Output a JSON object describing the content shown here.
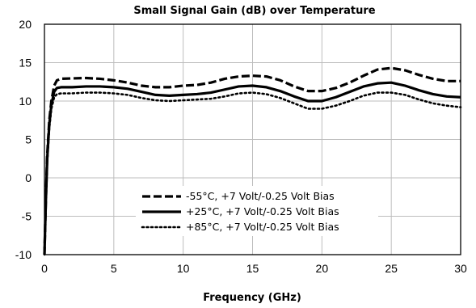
{
  "chart_data": {
    "type": "line",
    "title": "Small Signal Gain (dB) over Temperature",
    "xlabel": "Frequency (GHz)",
    "ylabel": "",
    "xlim": [
      0,
      30
    ],
    "ylim": [
      -10,
      20
    ],
    "xticks": [
      "0",
      "5",
      "10",
      "15",
      "20",
      "25",
      "30"
    ],
    "yticks": [
      "-10",
      "-5",
      "0",
      "5",
      "10",
      "15",
      "20"
    ],
    "grid": true,
    "legend_position": "bottom-center",
    "series": [
      {
        "name": "-55°C, +7 Volt/-0.25 Volt Bias",
        "style": "dashed",
        "color": "#000000",
        "points": [
          [
            0.0,
            -10
          ],
          [
            0.1,
            -3
          ],
          [
            0.2,
            3
          ],
          [
            0.35,
            7.5
          ],
          [
            0.5,
            10
          ],
          [
            0.7,
            12
          ],
          [
            0.9,
            12.7
          ],
          [
            1.2,
            12.9
          ],
          [
            2,
            12.95
          ],
          [
            3,
            13.0
          ],
          [
            4,
            12.9
          ],
          [
            5,
            12.7
          ],
          [
            6,
            12.4
          ],
          [
            7,
            12.0
          ],
          [
            8,
            11.8
          ],
          [
            9,
            11.8
          ],
          [
            10,
            12.0
          ],
          [
            11,
            12.1
          ],
          [
            12,
            12.4
          ],
          [
            13,
            12.9
          ],
          [
            14,
            13.2
          ],
          [
            15,
            13.3
          ],
          [
            16,
            13.2
          ],
          [
            17,
            12.7
          ],
          [
            18,
            11.9
          ],
          [
            19,
            11.3
          ],
          [
            20,
            11.3
          ],
          [
            21,
            11.7
          ],
          [
            22,
            12.4
          ],
          [
            23,
            13.3
          ],
          [
            24,
            14.1
          ],
          [
            25,
            14.3
          ],
          [
            26,
            14.0
          ],
          [
            27,
            13.4
          ],
          [
            28,
            12.9
          ],
          [
            29,
            12.6
          ],
          [
            30,
            12.6
          ]
        ]
      },
      {
        "name": "+25°C, +7 Volt/-0.25 Volt Bias",
        "style": "solid",
        "color": "#000000",
        "points": [
          [
            0.0,
            -10
          ],
          [
            0.1,
            -3
          ],
          [
            0.2,
            2.5
          ],
          [
            0.35,
            7
          ],
          [
            0.5,
            9.5
          ],
          [
            0.7,
            11.2
          ],
          [
            0.9,
            11.7
          ],
          [
            1.2,
            11.8
          ],
          [
            2,
            11.8
          ],
          [
            3,
            11.9
          ],
          [
            4,
            11.9
          ],
          [
            5,
            11.8
          ],
          [
            6,
            11.6
          ],
          [
            7,
            11.2
          ],
          [
            8,
            10.8
          ],
          [
            9,
            10.7
          ],
          [
            10,
            10.8
          ],
          [
            11,
            10.9
          ],
          [
            12,
            11.1
          ],
          [
            13,
            11.5
          ],
          [
            14,
            11.9
          ],
          [
            15,
            12.0
          ],
          [
            16,
            11.8
          ],
          [
            17,
            11.3
          ],
          [
            18,
            10.6
          ],
          [
            19,
            10.0
          ],
          [
            20,
            10.0
          ],
          [
            21,
            10.5
          ],
          [
            22,
            11.2
          ],
          [
            23,
            11.9
          ],
          [
            24,
            12.3
          ],
          [
            25,
            12.4
          ],
          [
            26,
            12.0
          ],
          [
            27,
            11.4
          ],
          [
            28,
            10.9
          ],
          [
            29,
            10.6
          ],
          [
            30,
            10.5
          ]
        ]
      },
      {
        "name": "+85°C, +7 Volt/-0.25 Volt Bias",
        "style": "dotted",
        "color": "#000000",
        "points": [
          [
            0.0,
            -10
          ],
          [
            0.1,
            -3
          ],
          [
            0.2,
            2
          ],
          [
            0.35,
            6.5
          ],
          [
            0.5,
            9
          ],
          [
            0.7,
            10.5
          ],
          [
            0.9,
            10.9
          ],
          [
            1.2,
            11.0
          ],
          [
            2,
            11.0
          ],
          [
            3,
            11.1
          ],
          [
            4,
            11.1
          ],
          [
            5,
            11.0
          ],
          [
            6,
            10.8
          ],
          [
            7,
            10.4
          ],
          [
            8,
            10.1
          ],
          [
            9,
            10.0
          ],
          [
            10,
            10.1
          ],
          [
            11,
            10.2
          ],
          [
            12,
            10.3
          ],
          [
            13,
            10.6
          ],
          [
            14,
            11.0
          ],
          [
            15,
            11.1
          ],
          [
            16,
            10.9
          ],
          [
            17,
            10.4
          ],
          [
            18,
            9.7
          ],
          [
            19,
            9.0
          ],
          [
            20,
            9.0
          ],
          [
            21,
            9.4
          ],
          [
            22,
            10.0
          ],
          [
            23,
            10.7
          ],
          [
            24,
            11.1
          ],
          [
            25,
            11.1
          ],
          [
            26,
            10.8
          ],
          [
            27,
            10.2
          ],
          [
            28,
            9.7
          ],
          [
            29,
            9.4
          ],
          [
            30,
            9.2
          ]
        ]
      }
    ]
  }
}
